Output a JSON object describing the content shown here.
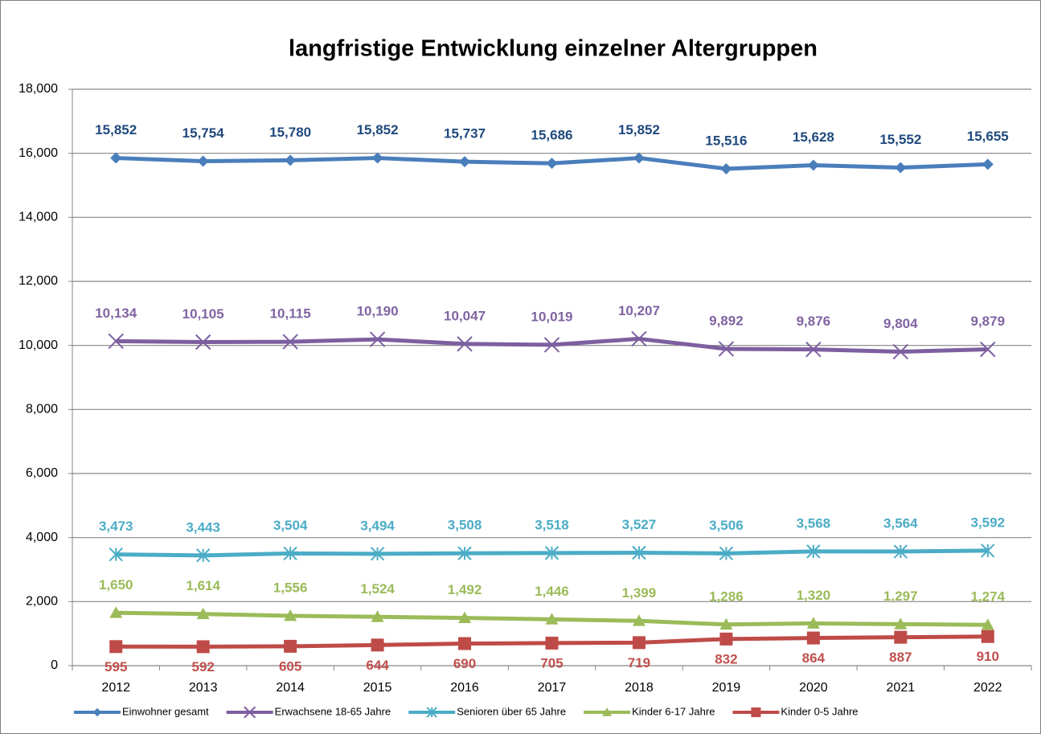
{
  "chart_data": {
    "type": "line",
    "title": "langfristige Entwicklung einzelner Altergruppen",
    "categories": [
      "2012",
      "2013",
      "2014",
      "2015",
      "2016",
      "2017",
      "2018",
      "2019",
      "2020",
      "2021",
      "2022"
    ],
    "ylim": [
      0,
      18000
    ],
    "yticks": [
      0,
      {
        "value": 2000,
        "label": "2,000"
      },
      {
        "value": 4000,
        "label": "4,000"
      },
      {
        "value": 6000,
        "label": "6,000"
      },
      {
        "value": 8000,
        "label": "8,000"
      },
      {
        "value": 10000,
        "label": "10,000"
      },
      {
        "value": 12000,
        "label": "12,000"
      },
      {
        "value": 14000,
        "label": "14,000"
      },
      {
        "value": 16000,
        "label": "16,000"
      },
      {
        "value": 18000,
        "label": "18,000"
      }
    ],
    "grid": true,
    "legend": "bottom",
    "series": [
      {
        "name": "Einwohner gesamt",
        "color": "#4a7ebb",
        "label_color": "#1f497d",
        "marker": "diamond",
        "label_position": "above",
        "values": [
          15852,
          15754,
          15780,
          15852,
          15737,
          15686,
          15852,
          15516,
          15628,
          15552,
          15655
        ],
        "value_labels": [
          "15,852",
          "15,754",
          "15,780",
          "15,852",
          "15,737",
          "15,686",
          "15,852",
          "15,516",
          "15,628",
          "15,552",
          "15,655"
        ]
      },
      {
        "name": "Erwachsene 18-65 Jahre",
        "color": "#7d5fa0",
        "label_color": "#8064a2",
        "marker": "x",
        "label_position": "above",
        "values": [
          10134,
          10105,
          10115,
          10190,
          10047,
          10019,
          10207,
          9892,
          9876,
          9804,
          9879
        ],
        "value_labels": [
          "10,134",
          "10,105",
          "10,115",
          "10,190",
          "10,047",
          "10,019",
          "10,207",
          "9,892",
          "9,876",
          "9,804",
          "9,879"
        ]
      },
      {
        "name": "Senioren über 65 Jahre",
        "color": "#4bacc6",
        "label_color": "#4bacc6",
        "marker": "asterisk",
        "label_position": "above",
        "values": [
          3473,
          3443,
          3504,
          3494,
          3508,
          3518,
          3527,
          3506,
          3568,
          3564,
          3592
        ],
        "value_labels": [
          "3,473",
          "3,443",
          "3,504",
          "3,494",
          "3,508",
          "3,518",
          "3,527",
          "3,506",
          "3,568",
          "3,564",
          "3,592"
        ]
      },
      {
        "name": "Kinder 6-17 Jahre",
        "color": "#9bbb59",
        "label_color": "#9bbb59",
        "marker": "triangle",
        "label_position": "above",
        "values": [
          1650,
          1614,
          1556,
          1524,
          1492,
          1446,
          1399,
          1286,
          1320,
          1297,
          1274
        ],
        "value_labels": [
          "1,650",
          "1,614",
          "1,556",
          "1,524",
          "1,492",
          "1,446",
          "1,399",
          "1,286",
          "1,320",
          "1,297",
          "1,274"
        ]
      },
      {
        "name": "Kinder 0-5 Jahre",
        "color": "#be4b48",
        "label_color": "#c0504d",
        "marker": "square",
        "label_position": "below",
        "values": [
          595,
          592,
          605,
          644,
          690,
          705,
          719,
          832,
          864,
          887,
          910
        ]
      }
    ]
  }
}
